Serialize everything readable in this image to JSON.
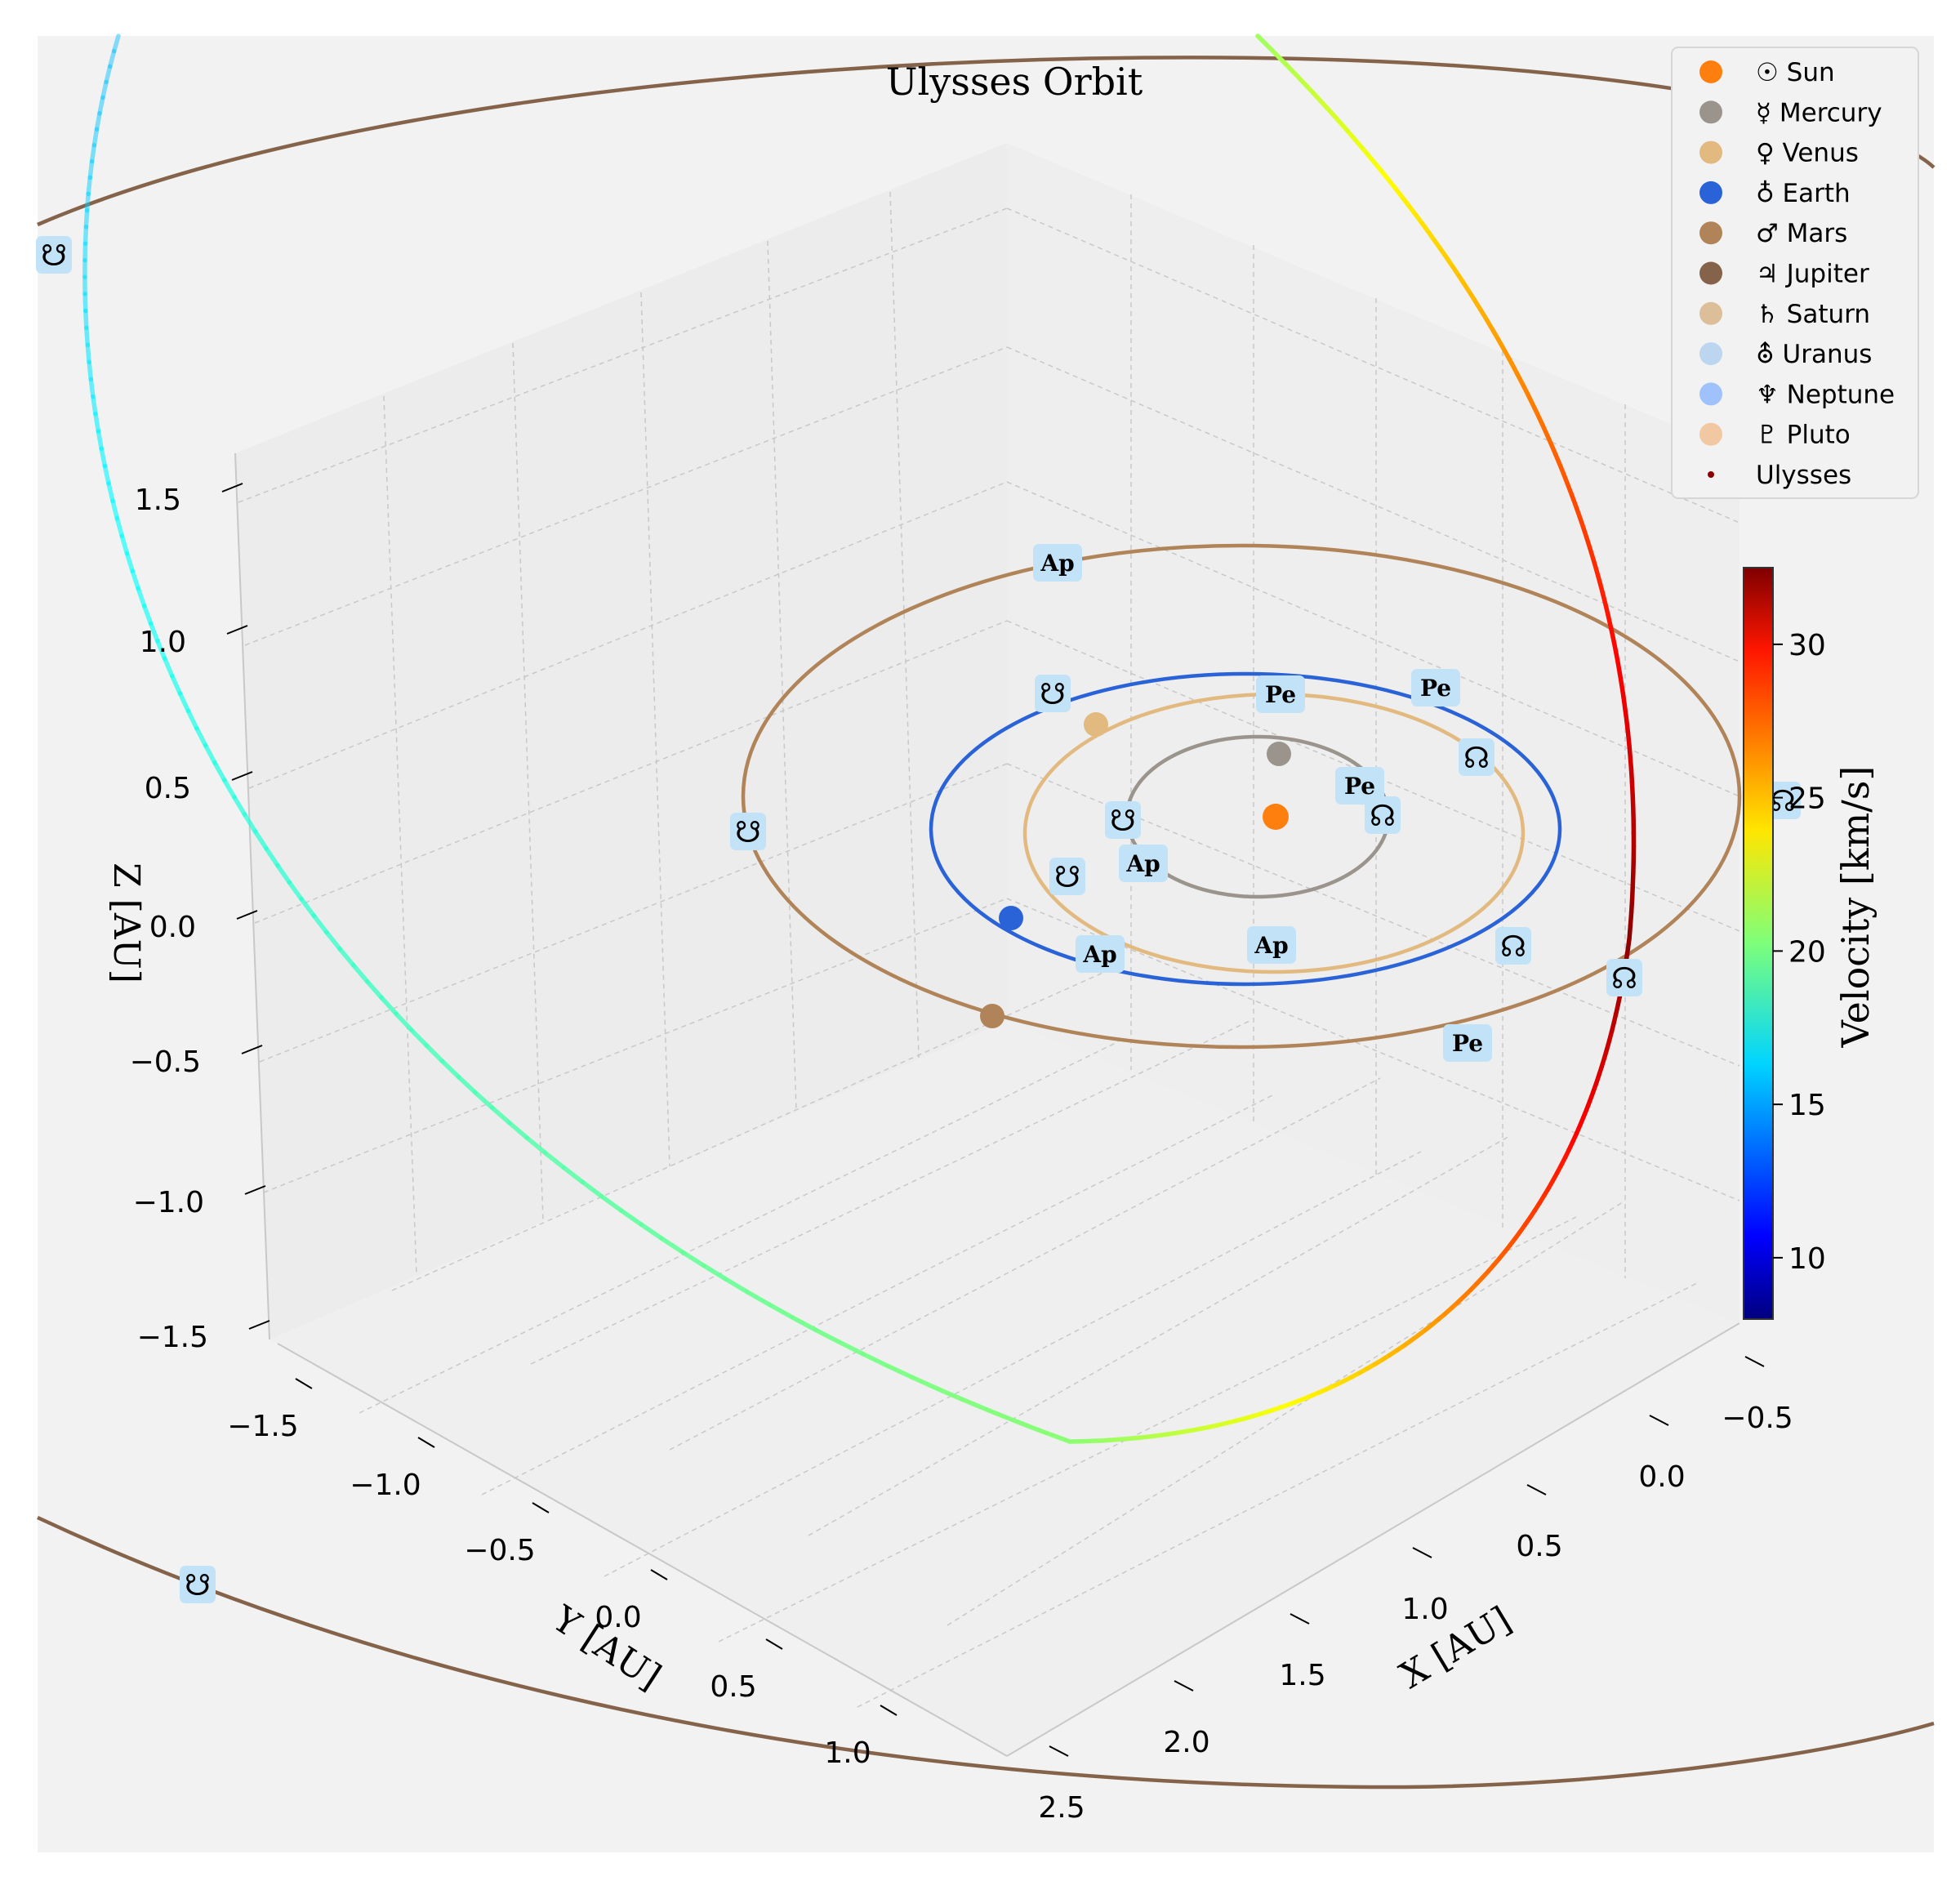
{
  "chart_data": {
    "type": "scatter",
    "title": "Ulysses Orbit",
    "xlabel": "X [AU]",
    "ylabel": "Y [AU]",
    "zlabel": "Z [AU]",
    "x_ticks": [
      "−0.5",
      "0.0",
      "0.5",
      "1.0",
      "1.5",
      "2.0",
      "2.5"
    ],
    "y_ticks": [
      "−1.5",
      "−1.0",
      "−0.5",
      "0.0",
      "0.5",
      "1.0"
    ],
    "z_ticks": [
      "1.5",
      "1.0",
      "0.5",
      "0.0",
      "−0.5",
      "−1.0",
      "−1.5"
    ],
    "xlim": [
      -0.5,
      2.5
    ],
    "ylim": [
      -1.5,
      1.0
    ],
    "zlim": [
      -1.5,
      1.5
    ],
    "grid": true,
    "legend_position": "top-right",
    "legend": [
      {
        "label": "☉ Sun",
        "color": "#ff7f0e",
        "marker": "circle"
      },
      {
        "label": "☿ Mercury",
        "color": "#9a948c",
        "marker": "circle"
      },
      {
        "label": "♀ Venus",
        "color": "#e2b97f",
        "marker": "circle"
      },
      {
        "label": "♁ Earth",
        "color": "#2a62d8",
        "marker": "circle"
      },
      {
        "label": "♂ Mars",
        "color": "#b08458",
        "marker": "circle"
      },
      {
        "label": "♃ Jupiter",
        "color": "#84634a",
        "marker": "circle"
      },
      {
        "label": "♄ Saturn",
        "color": "#dcbf98",
        "marker": "circle"
      },
      {
        "label": "⛢ Uranus",
        "color": "#bcd6ef",
        "marker": "circle"
      },
      {
        "label": "♆ Neptune",
        "color": "#9fc2fc",
        "marker": "circle"
      },
      {
        "label": "♇ Pluto",
        "color": "#f2c8a3",
        "marker": "circle"
      },
      {
        "label": "Ulysses",
        "color": "#8b0000",
        "marker": "dot"
      }
    ],
    "colorbar": {
      "label": "Velocity [km/s]",
      "range": [
        8,
        32.5
      ],
      "ticks": [
        "10",
        "15",
        "20",
        "25",
        "30"
      ],
      "tick_values": [
        10,
        15,
        20,
        25,
        30
      ],
      "colormap": "jet"
    },
    "orbits": [
      {
        "name": "Mercury",
        "color": "#9a948c"
      },
      {
        "name": "Venus",
        "color": "#e2b97f"
      },
      {
        "name": "Earth",
        "color": "#2a62d8"
      },
      {
        "name": "Mars",
        "color": "#b08458"
      },
      {
        "name": "Jupiter",
        "color": "#84634a"
      }
    ],
    "orbit_markers": {
      "perihelion": "Pe",
      "aphelion": "Ap",
      "ascending_node": "☊",
      "descending_node": "☋"
    }
  }
}
